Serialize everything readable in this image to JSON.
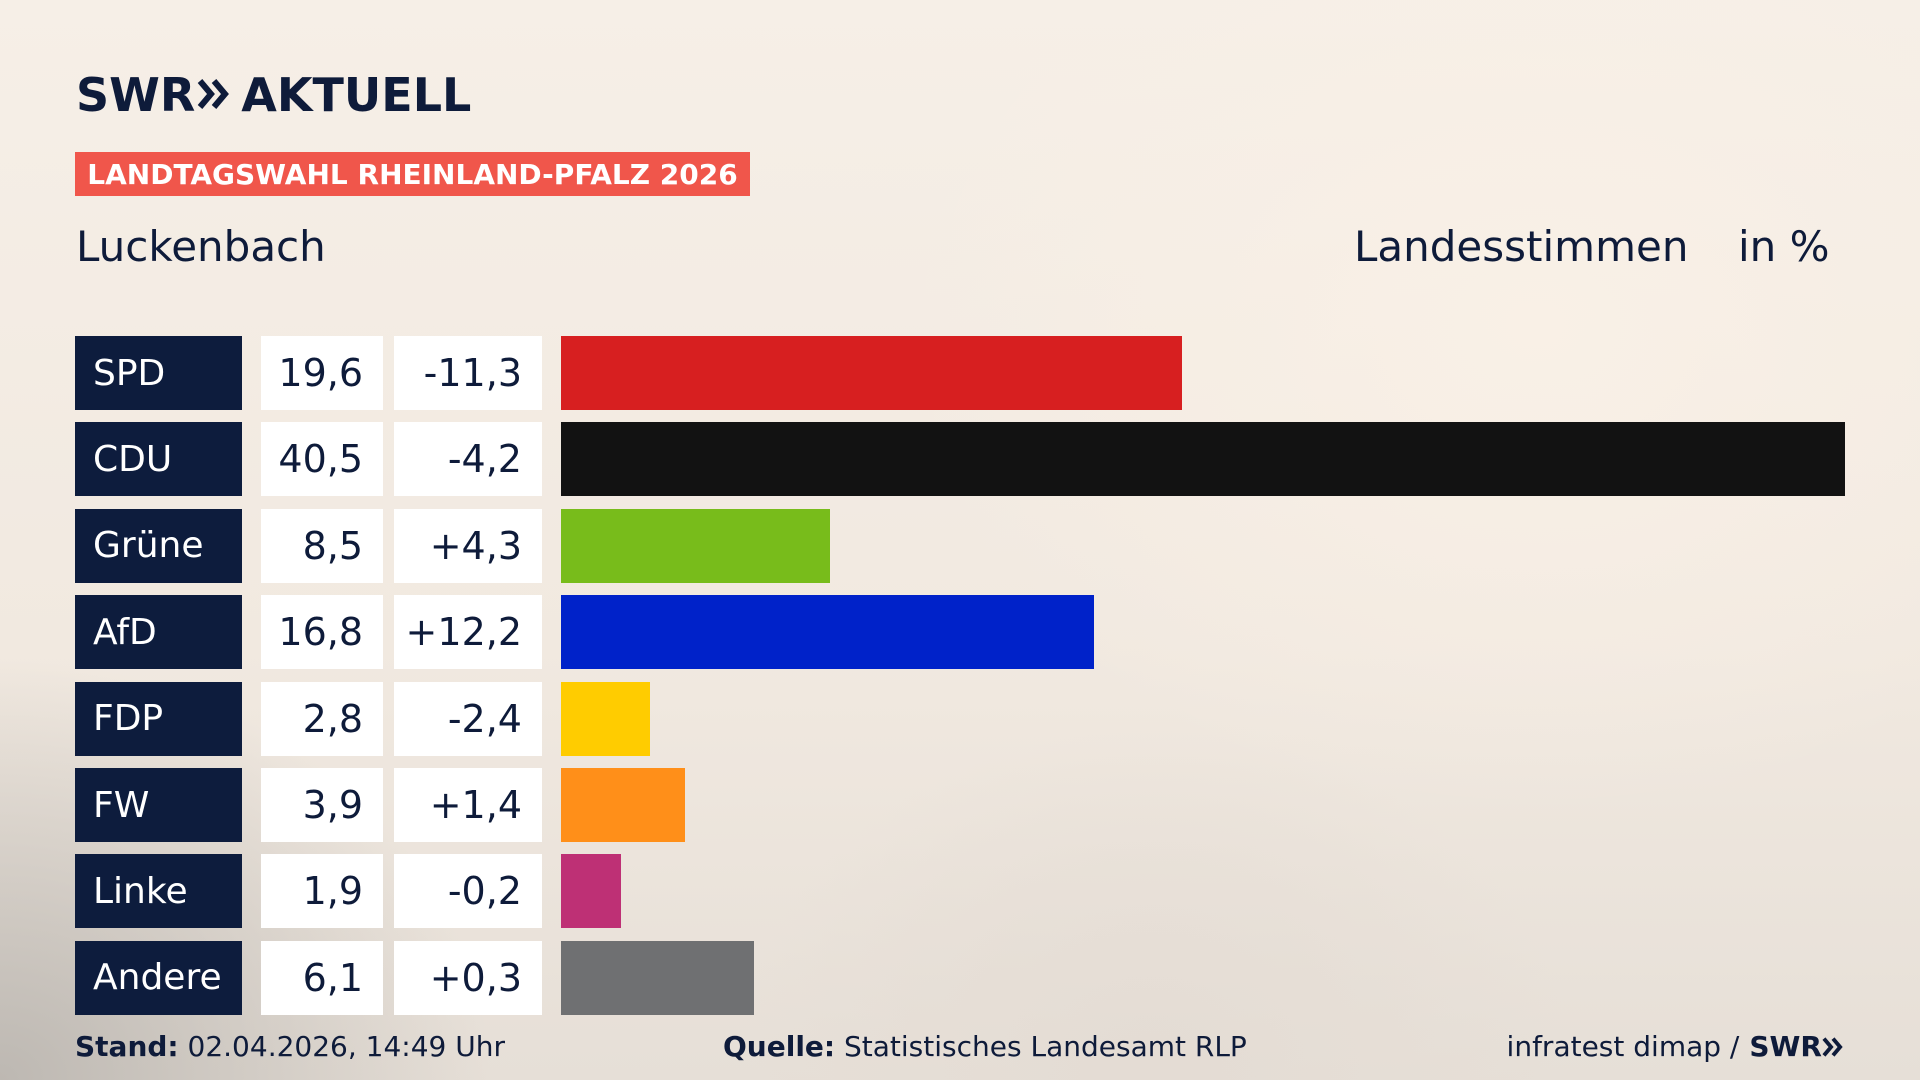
{
  "header": {
    "logo_brand": "SWR",
    "logo_text": "AKTUELL",
    "badge": "LANDTAGSWAHL RHEINLAND-PFALZ 2026",
    "location": "Luckenbach",
    "vote_type": "Landesstimmen",
    "unit": "in %"
  },
  "chart_data": {
    "type": "bar",
    "orientation": "horizontal",
    "categories": [
      "SPD",
      "CDU",
      "Grüne",
      "AfD",
      "FDP",
      "FW",
      "Linke",
      "Andere"
    ],
    "values": [
      19.6,
      40.5,
      8.5,
      16.8,
      2.8,
      3.9,
      1.9,
      6.1
    ],
    "value_labels": [
      "19,6",
      "40,5",
      "8,5",
      "16,8",
      "2,8",
      "3,9",
      "1,9",
      "6,1"
    ],
    "diff_labels": [
      "-11,3",
      "-4,2",
      "+4,3",
      "+12,2",
      "-2,4",
      "+1,4",
      "-0,2",
      "+0,3"
    ],
    "colors": [
      "#d71f20",
      "#121212",
      "#78bc1b",
      "#0022c9",
      "#ffcc00",
      "#ff8f19",
      "#be3075",
      "#6f7072"
    ],
    "xlim": [
      0,
      40.5
    ],
    "grid": false
  },
  "footer": {
    "stand_label": "Stand:",
    "stand_value": "02.04.2026, 14:49 Uhr",
    "quelle_label": "Quelle:",
    "quelle_value": "Statistisches Landesamt RLP",
    "credit": "infratest dimap /",
    "credit_brand": "SWR"
  }
}
